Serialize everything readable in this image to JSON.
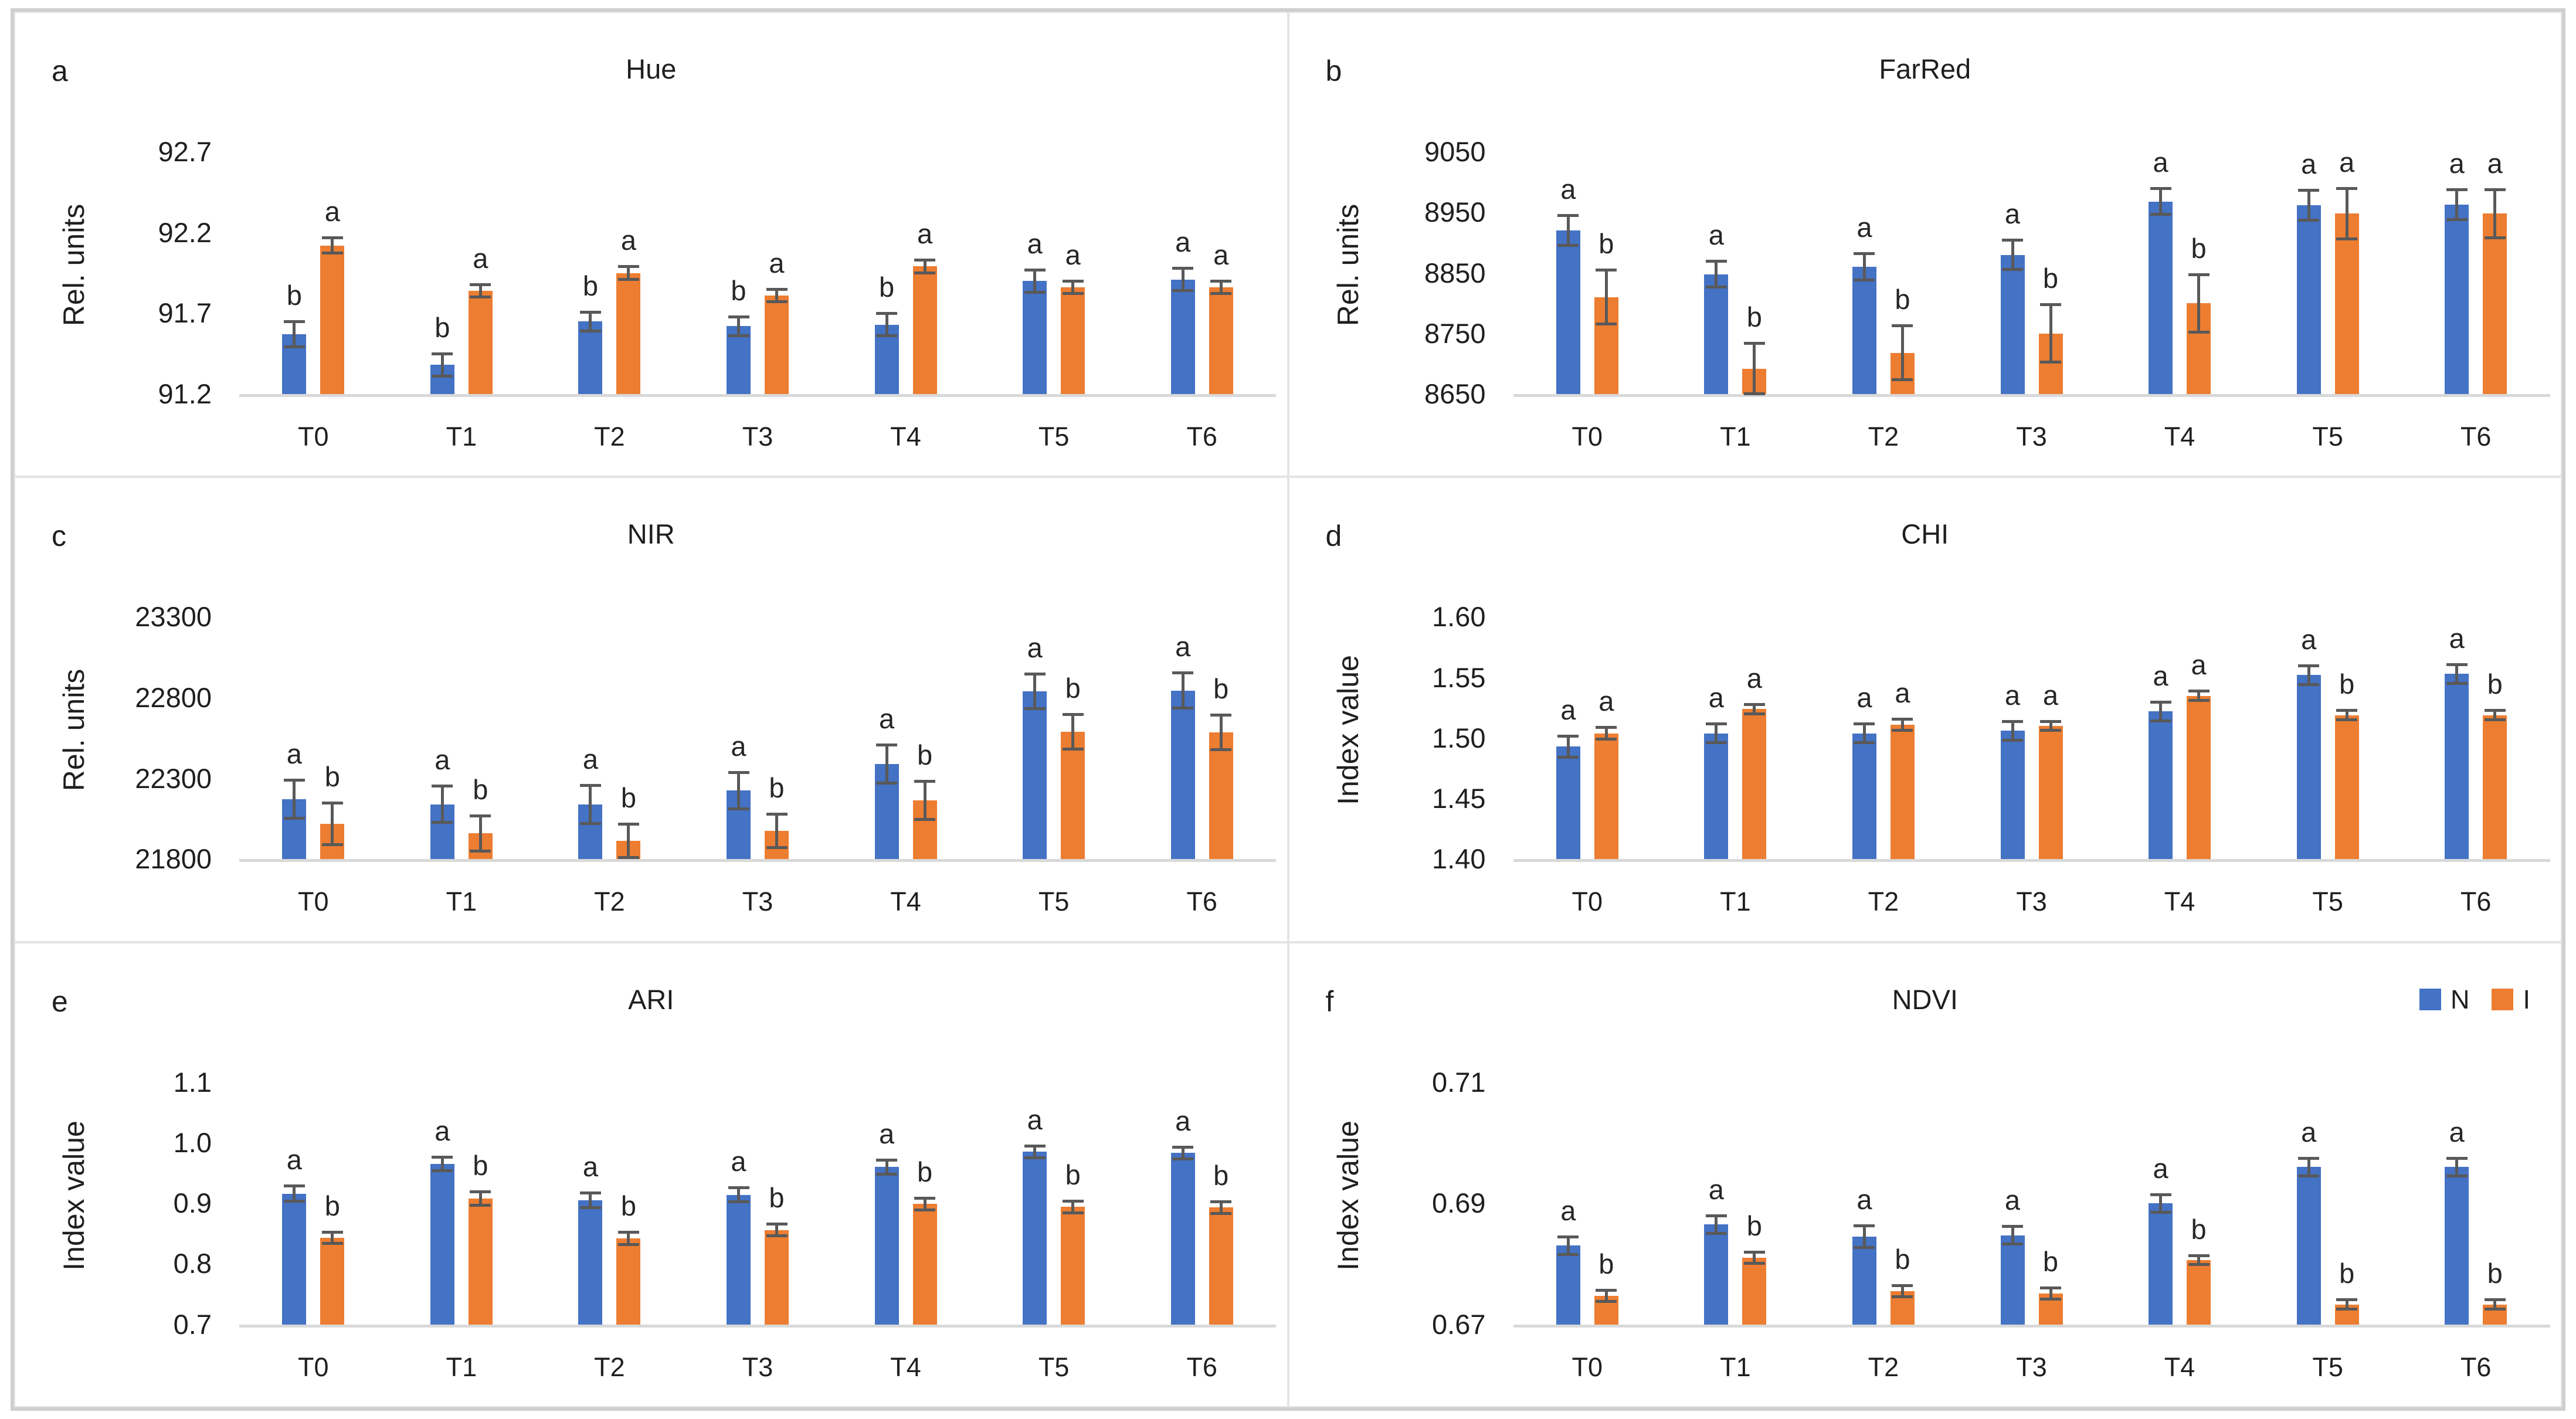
{
  "figure": {
    "panel_letters": [
      "a",
      "b",
      "c",
      "d",
      "e",
      "f"
    ],
    "categories": [
      "T0",
      "T1",
      "T2",
      "T3",
      "T4",
      "T5",
      "T6"
    ]
  },
  "legend": {
    "items": [
      {
        "label": "N",
        "color": "#4472C4"
      },
      {
        "label": "I",
        "color": "#ED7D31"
      }
    ]
  },
  "colors": {
    "blue_series": "#4472C4",
    "orange_series": "#ED7D31",
    "error_bar": "#595959",
    "axis_line": "#d9d9d9",
    "text": "#1f1f1f"
  },
  "chart_data": [
    {
      "type": "bar",
      "letter": "a",
      "title": "Hue",
      "ylabel": "Rel. units",
      "categories": [
        "T0",
        "T1",
        "T2",
        "T3",
        "T4",
        "T5",
        "T6"
      ],
      "ylim": [
        91.2,
        92.7
      ],
      "yticks": [
        {
          "v": 91.2,
          "label": "91.2"
        },
        {
          "v": 91.7,
          "label": "91.7"
        },
        {
          "v": 92.2,
          "label": "92.2"
        },
        {
          "v": 92.7,
          "label": "92.7"
        }
      ],
      "series": [
        {
          "name": "N",
          "values": [
            91.57,
            91.38,
            91.65,
            91.62,
            91.63,
            91.9,
            91.91
          ],
          "errors": [
            0.08,
            0.07,
            0.06,
            0.06,
            0.07,
            0.07,
            0.07
          ],
          "sig_letters": [
            "b",
            "b",
            "b",
            "b",
            "b",
            "a",
            "a"
          ]
        },
        {
          "name": "I",
          "values": [
            92.12,
            91.84,
            91.95,
            91.81,
            91.99,
            91.86,
            91.86
          ],
          "errors": [
            0.05,
            0.04,
            0.04,
            0.04,
            0.04,
            0.04,
            0.04
          ],
          "sig_letters": [
            "a",
            "a",
            "a",
            "a",
            "a",
            "a",
            "a"
          ]
        }
      ]
    },
    {
      "type": "bar",
      "letter": "b",
      "title": "FarRed",
      "ylabel": "Rel. units",
      "categories": [
        "T0",
        "T1",
        "T2",
        "T3",
        "T4",
        "T5",
        "T6"
      ],
      "ylim": [
        8650,
        9050
      ],
      "yticks": [
        {
          "v": 8650,
          "label": "8650"
        },
        {
          "v": 8750,
          "label": "8750"
        },
        {
          "v": 8850,
          "label": "8850"
        },
        {
          "v": 8950,
          "label": "8950"
        },
        {
          "v": 9050,
          "label": "9050"
        }
      ],
      "series": [
        {
          "name": "N",
          "values": [
            8920,
            8848,
            8860,
            8880,
            8968,
            8962,
            8963
          ],
          "errors": [
            25,
            22,
            22,
            25,
            22,
            25,
            25
          ],
          "sig_letters": [
            "a",
            "a",
            "a",
            "a",
            "a",
            "a",
            "a"
          ]
        },
        {
          "name": "I",
          "values": [
            8810,
            8692,
            8718,
            8750,
            8800,
            8948,
            8948
          ],
          "errors": [
            45,
            42,
            45,
            48,
            48,
            42,
            40
          ],
          "sig_letters": [
            "b",
            "b",
            "b",
            "b",
            "b",
            "a",
            "a"
          ]
        }
      ]
    },
    {
      "type": "bar",
      "letter": "c",
      "title": "NIR",
      "ylabel": "Rel. units",
      "categories": [
        "T0",
        "T1",
        "T2",
        "T3",
        "T4",
        "T5",
        "T6"
      ],
      "ylim": [
        21800,
        23300
      ],
      "yticks": [
        {
          "v": 21800,
          "label": "21800"
        },
        {
          "v": 22300,
          "label": "22300"
        },
        {
          "v": 22800,
          "label": "22800"
        },
        {
          "v": 23300,
          "label": "23300"
        }
      ],
      "series": [
        {
          "name": "N",
          "values": [
            22170,
            22140,
            22140,
            22225,
            22390,
            22840,
            22845
          ],
          "errors": [
            120,
            115,
            120,
            115,
            120,
            110,
            110
          ],
          "sig_letters": [
            "a",
            "a",
            "a",
            "a",
            "a",
            "a",
            "a"
          ]
        },
        {
          "name": "I",
          "values": [
            22020,
            21960,
            21915,
            21975,
            22165,
            22590,
            22585
          ],
          "errors": [
            130,
            110,
            105,
            105,
            120,
            110,
            110
          ],
          "sig_letters": [
            "b",
            "b",
            "b",
            "b",
            "b",
            "b",
            "b"
          ]
        }
      ]
    },
    {
      "type": "bar",
      "letter": "d",
      "title": "CHI",
      "ylabel": "Index value",
      "categories": [
        "T0",
        "T1",
        "T2",
        "T3",
        "T4",
        "T5",
        "T6"
      ],
      "ylim": [
        1.4,
        1.6
      ],
      "yticks": [
        {
          "v": 1.4,
          "label": "1.40"
        },
        {
          "v": 1.45,
          "label": "1.45"
        },
        {
          "v": 1.5,
          "label": "1.50"
        },
        {
          "v": 1.55,
          "label": "1.55"
        },
        {
          "v": 1.6,
          "label": "1.60"
        }
      ],
      "series": [
        {
          "name": "N",
          "values": [
            1.493,
            1.504,
            1.504,
            1.506,
            1.522,
            1.552,
            1.553
          ],
          "errors": [
            0.009,
            0.008,
            0.008,
            0.008,
            0.008,
            0.008,
            0.008
          ],
          "sig_letters": [
            "a",
            "a",
            "a",
            "a",
            "a",
            "a",
            "a"
          ]
        },
        {
          "name": "I",
          "values": [
            1.504,
            1.524,
            1.511,
            1.51,
            1.535,
            1.519,
            1.519
          ],
          "errors": [
            0.005,
            0.004,
            0.005,
            0.004,
            0.004,
            0.004,
            0.004
          ],
          "sig_letters": [
            "a",
            "a",
            "a",
            "a",
            "a",
            "b",
            "b"
          ]
        }
      ]
    },
    {
      "type": "bar",
      "letter": "e",
      "title": "ARI",
      "ylabel": "Index value",
      "categories": [
        "T0",
        "T1",
        "T2",
        "T3",
        "T4",
        "T5",
        "T6"
      ],
      "ylim": [
        0.7,
        1.1
      ],
      "yticks": [
        {
          "v": 0.7,
          "label": "0.7"
        },
        {
          "v": 0.8,
          "label": "0.8"
        },
        {
          "v": 0.9,
          "label": "0.9"
        },
        {
          "v": 1.0,
          "label": "1.0"
        },
        {
          "v": 1.1,
          "label": "1.1"
        }
      ],
      "series": [
        {
          "name": "N",
          "values": [
            0.916,
            0.965,
            0.905,
            0.914,
            0.96,
            0.985,
            0.983
          ],
          "errors": [
            0.013,
            0.012,
            0.013,
            0.012,
            0.012,
            0.01,
            0.01
          ],
          "sig_letters": [
            "a",
            "a",
            "a",
            "a",
            "a",
            "a",
            "a"
          ]
        },
        {
          "name": "I",
          "values": [
            0.843,
            0.908,
            0.842,
            0.856,
            0.899,
            0.894,
            0.893
          ],
          "errors": [
            0.01,
            0.012,
            0.011,
            0.01,
            0.01,
            0.01,
            0.01
          ],
          "sig_letters": [
            "b",
            "b",
            "b",
            "b",
            "b",
            "b",
            "b"
          ]
        }
      ]
    },
    {
      "type": "bar",
      "letter": "f",
      "title": "NDVI",
      "ylabel": "Index value",
      "categories": [
        "T0",
        "T1",
        "T2",
        "T3",
        "T4",
        "T5",
        "T6"
      ],
      "ylim": [
        0.67,
        0.71
      ],
      "yticks": [
        {
          "v": 0.67,
          "label": "0.67"
        },
        {
          "v": 0.69,
          "label": "0.69"
        },
        {
          "v": 0.71,
          "label": "0.71"
        }
      ],
      "has_legend": true,
      "series": [
        {
          "name": "N",
          "values": [
            0.683,
            0.6865,
            0.6845,
            0.6847,
            0.69,
            0.696,
            0.696
          ],
          "errors": [
            0.0015,
            0.0015,
            0.0018,
            0.0015,
            0.0015,
            0.0015,
            0.0015
          ],
          "sig_letters": [
            "a",
            "a",
            "a",
            "a",
            "a",
            "a",
            "a"
          ]
        },
        {
          "name": "I",
          "values": [
            0.6747,
            0.681,
            0.6755,
            0.6751,
            0.6806,
            0.6733,
            0.6733
          ],
          "errors": [
            0.001,
            0.001,
            0.001,
            0.001,
            0.0008,
            0.0008,
            0.0008
          ],
          "sig_letters": [
            "b",
            "b",
            "b",
            "b",
            "b",
            "b",
            "b"
          ]
        }
      ]
    }
  ]
}
